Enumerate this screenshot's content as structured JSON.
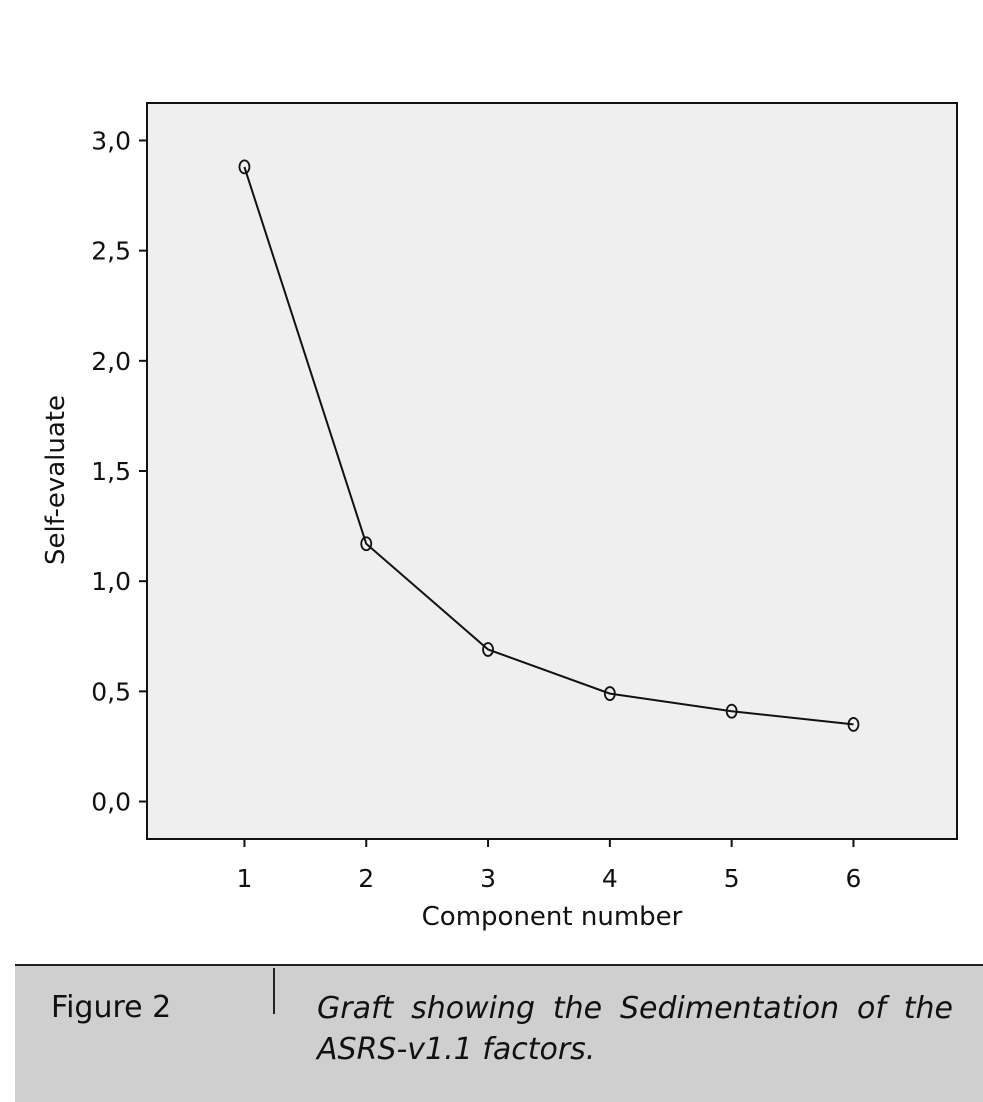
{
  "chart_data": {
    "type": "line",
    "x": [
      1,
      2,
      3,
      4,
      5,
      6
    ],
    "values": [
      2.88,
      1.17,
      0.69,
      0.49,
      0.41,
      0.35
    ],
    "xlabel": "Component number",
    "ylabel": "Self-evaluate",
    "xlim": [
      0.2,
      6.85
    ],
    "ylim": [
      -0.17,
      3.17
    ],
    "xticks": [
      "1",
      "2",
      "3",
      "4",
      "5",
      "6"
    ],
    "yticks": [
      {
        "value": 0.0,
        "label": "0,0"
      },
      {
        "value": 0.5,
        "label": "0,5"
      },
      {
        "value": 1.0,
        "label": "1,0"
      },
      {
        "value": 1.5,
        "label": "1,5"
      },
      {
        "value": 2.0,
        "label": "2,0"
      },
      {
        "value": 2.5,
        "label": "2,5"
      },
      {
        "value": 3.0,
        "label": "3,0"
      }
    ],
    "grid": false,
    "marker": "open-circle",
    "colors": {
      "plot_background": "#efefef",
      "line": "#111111"
    }
  },
  "caption": {
    "label": "Figure 2",
    "text": "Graft showing the Sedimentation of the ASRS-v1.1 factors.",
    "background": "#cfcfcf"
  }
}
